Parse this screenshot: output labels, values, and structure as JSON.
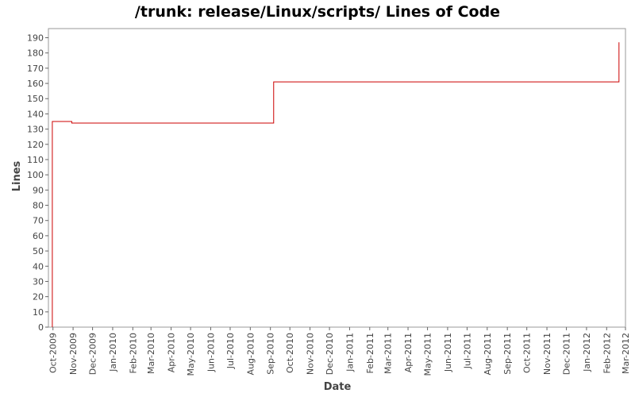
{
  "chart_data": {
    "type": "line",
    "title": "/trunk: release/Linux/scripts/ Lines of Code",
    "xlabel": "Date",
    "ylabel": "Lines",
    "x_ticks": [
      "Oct-2009",
      "Nov-2009",
      "Dec-2009",
      "Jan-2010",
      "Feb-2010",
      "Mar-2010",
      "Apr-2010",
      "May-2010",
      "Jun-2010",
      "Jul-2010",
      "Aug-2010",
      "Sep-2010",
      "Oct-2010",
      "Nov-2010",
      "Dec-2010",
      "Jan-2011",
      "Feb-2011",
      "Mar-2011",
      "Apr-2011",
      "May-2011",
      "Jun-2011",
      "Jul-2011",
      "Aug-2011",
      "Sep-2011",
      "Oct-2011",
      "Nov-2011",
      "Dec-2011",
      "Jan-2012",
      "Feb-2012",
      "Mar-2012"
    ],
    "y_ticks": [
      0,
      10,
      20,
      30,
      40,
      50,
      60,
      70,
      80,
      90,
      100,
      110,
      120,
      130,
      140,
      150,
      160,
      170,
      180,
      190
    ],
    "xlim": [
      "2009-09-24",
      "2012-03-01"
    ],
    "ylim": [
      0,
      196
    ],
    "step": true,
    "series": [
      {
        "color": "#cc0000",
        "points": [
          {
            "x": "2009-09-30",
            "y": 0
          },
          {
            "x": "2009-09-30",
            "y": 135
          },
          {
            "x": "2009-10-30",
            "y": 135
          },
          {
            "x": "2009-10-30",
            "y": 134
          },
          {
            "x": "2010-09-06",
            "y": 134
          },
          {
            "x": "2010-09-06",
            "y": 161
          },
          {
            "x": "2012-02-20",
            "y": 161
          },
          {
            "x": "2012-02-20",
            "y": 187
          }
        ]
      }
    ],
    "grid": false,
    "legend": "none"
  }
}
